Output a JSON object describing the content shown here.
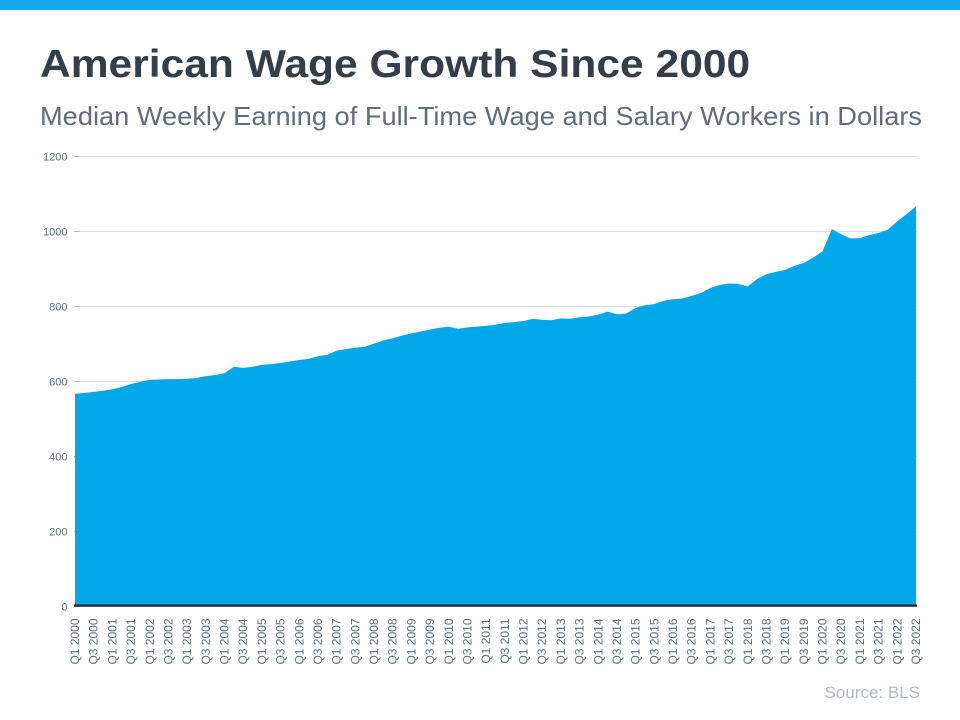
{
  "page": {
    "topbar_color": "#17aaec",
    "background": "#ffffff"
  },
  "header": {
    "title": "American Wage Growth Since 2000",
    "subtitle": "Median Weekly Earning of Full-Time Wage and Salary Workers in Dollars"
  },
  "footer": {
    "source_label": "Source: BLS"
  },
  "chart_data": {
    "type": "area",
    "title": "American Wage Growth Since 2000",
    "subtitle": "Median Weekly Earning of Full-Time Wage and Salary Workers in Dollars",
    "xlabel": "",
    "ylabel": "",
    "x": [
      "Q1 2000",
      "Q2 2000",
      "Q3 2000",
      "Q4 2000",
      "Q1 2001",
      "Q2 2001",
      "Q3 2001",
      "Q4 2001",
      "Q1 2002",
      "Q2 2002",
      "Q3 2002",
      "Q4 2002",
      "Q1 2003",
      "Q2 2003",
      "Q3 2003",
      "Q4 2003",
      "Q1 2004",
      "Q2 2004",
      "Q3 2004",
      "Q4 2004",
      "Q1 2005",
      "Q2 2005",
      "Q3 2005",
      "Q4 2005",
      "Q1 2006",
      "Q2 2006",
      "Q3 2006",
      "Q4 2006",
      "Q1 2007",
      "Q2 2007",
      "Q3 2007",
      "Q4 2007",
      "Q1 2008",
      "Q2 2008",
      "Q3 2008",
      "Q4 2008",
      "Q1 2009",
      "Q2 2009",
      "Q3 2009",
      "Q4 2009",
      "Q1 2010",
      "Q2 2010",
      "Q3 2010",
      "Q4 2010",
      "Q1 2011",
      "Q2 2011",
      "Q3 2011",
      "Q4 2011",
      "Q1 2012",
      "Q2 2012",
      "Q3 2012",
      "Q4 2012",
      "Q1 2013",
      "Q2 2013",
      "Q3 2013",
      "Q4 2013",
      "Q1 2014",
      "Q2 2014",
      "Q3 2014",
      "Q4 2014",
      "Q1 2015",
      "Q2 2015",
      "Q3 2015",
      "Q4 2015",
      "Q1 2016",
      "Q2 2016",
      "Q3 2016",
      "Q4 2016",
      "Q1 2017",
      "Q2 2017",
      "Q3 2017",
      "Q4 2017",
      "Q1 2018",
      "Q2 2018",
      "Q3 2018",
      "Q4 2018",
      "Q1 2019",
      "Q2 2019",
      "Q3 2019",
      "Q4 2019",
      "Q1 2020",
      "Q2 2020",
      "Q3 2020",
      "Q4 2020",
      "Q1 2021",
      "Q2 2021",
      "Q3 2021",
      "Q4 2021",
      "Q1 2022",
      "Q2 2022",
      "Q3 2022"
    ],
    "values": [
      566,
      568,
      571,
      574,
      578,
      584,
      592,
      598,
      603,
      604,
      605,
      605,
      606,
      608,
      613,
      616,
      621,
      638,
      635,
      638,
      643,
      645,
      648,
      652,
      656,
      659,
      666,
      670,
      681,
      685,
      689,
      691,
      700,
      708,
      714,
      721,
      727,
      732,
      737,
      742,
      745,
      739,
      743,
      745,
      747,
      750,
      755,
      757,
      760,
      766,
      763,
      762,
      767,
      766,
      770,
      772,
      777,
      785,
      778,
      780,
      795,
      802,
      805,
      814,
      818,
      820,
      827,
      835,
      848,
      856,
      860,
      859,
      852,
      872,
      885,
      891,
      896,
      907,
      915,
      929,
      946,
      1005,
      991,
      980,
      981,
      989,
      995,
      1004,
      1026,
      1045,
      1066
    ],
    "x_tick_every": 2,
    "y_ticks": [
      0,
      200,
      400,
      600,
      800,
      1000,
      1200
    ],
    "ylim": [
      0,
      1200
    ],
    "grid": "horizontal",
    "legend": "none",
    "source_label": "Source: BLS",
    "colors": {
      "area_fill": "#00a8e9",
      "axis_line": "#1c2a33",
      "gridline": "#d9dbdd",
      "tick_mark": "#b3babf",
      "tick_label": "#5d6c77",
      "title": "#333e48",
      "subtitle": "#5e6d78",
      "source": "#aebac3"
    }
  }
}
